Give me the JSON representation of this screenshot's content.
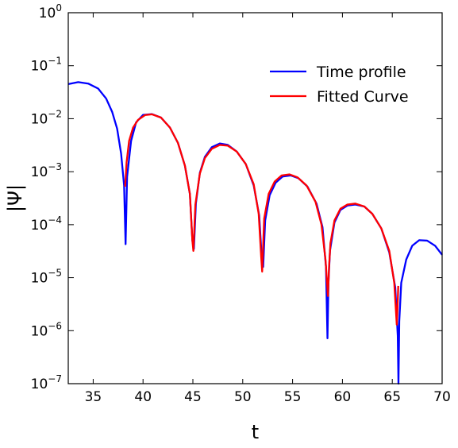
{
  "chart_data": {
    "type": "line",
    "title": "",
    "xlabel": "t",
    "ylabel": "|Ψ|",
    "xlim": [
      32.5,
      70
    ],
    "ylim": [
      1e-07,
      1
    ],
    "yscale": "log",
    "grid": false,
    "legend_position": "top-right",
    "x_ticks": [
      {
        "value": 35,
        "label": "35"
      },
      {
        "value": 40,
        "label": "40"
      },
      {
        "value": 45,
        "label": "45"
      },
      {
        "value": 50,
        "label": "50"
      },
      {
        "value": 55,
        "label": "55"
      },
      {
        "value": 60,
        "label": "60"
      },
      {
        "value": 65,
        "label": "65"
      },
      {
        "value": 70,
        "label": "70"
      }
    ],
    "y_ticks": [
      {
        "exp": 0,
        "base": "10",
        "sup": "0"
      },
      {
        "exp": -1,
        "base": "10",
        "sup": "−1"
      },
      {
        "exp": -2,
        "base": "10",
        "sup": "−2"
      },
      {
        "exp": -3,
        "base": "10",
        "sup": "−3"
      },
      {
        "exp": -4,
        "base": "10",
        "sup": "−4"
      },
      {
        "exp": -5,
        "base": "10",
        "sup": "−5"
      },
      {
        "exp": -6,
        "base": "10",
        "sup": "−6"
      },
      {
        "exp": -7,
        "base": "10",
        "sup": "−7"
      }
    ],
    "series": [
      {
        "name": "Time profile",
        "color": "#0000ff",
        "x": [
          32.5,
          33.5,
          34.5,
          35.5,
          36.3,
          36.9,
          37.4,
          37.8,
          38.1,
          38.25,
          38.4,
          38.8,
          39.3,
          40.0,
          40.9,
          41.8,
          42.7,
          43.5,
          44.2,
          44.7,
          44.95,
          45.1,
          45.3,
          45.7,
          46.2,
          46.9,
          47.7,
          48.5,
          49.4,
          50.3,
          51.1,
          51.65,
          51.9,
          52.05,
          52.25,
          52.7,
          53.3,
          54.0,
          54.8,
          55.6,
          56.5,
          57.4,
          58.0,
          58.35,
          58.5,
          58.6,
          58.75,
          59.2,
          59.8,
          60.5,
          61.3,
          62.2,
          63.0,
          63.9,
          64.7,
          65.3,
          65.55,
          65.62,
          65.7,
          65.9,
          66.4,
          67.0,
          67.7,
          68.5,
          69.3,
          70.0
        ],
        "y": [
          0.045,
          0.049,
          0.046,
          0.037,
          0.024,
          0.0135,
          0.0065,
          0.0022,
          0.00055,
          4.3e-05,
          0.0008,
          0.0038,
          0.0085,
          0.0118,
          0.0122,
          0.0105,
          0.0068,
          0.0035,
          0.0013,
          0.00038,
          5e-05,
          3.5e-05,
          0.00025,
          0.00095,
          0.0019,
          0.0029,
          0.0034,
          0.0032,
          0.0024,
          0.0014,
          0.00055,
          0.00015,
          2.5e-05,
          1.6e-05,
          0.00012,
          0.00036,
          0.00062,
          0.00081,
          0.00085,
          0.00075,
          0.00052,
          0.00025,
          9e-05,
          1.6e-05,
          7.2e-07,
          8e-06,
          3.2e-05,
          0.00011,
          0.00019,
          0.00023,
          0.00024,
          0.00022,
          0.00016,
          8.5e-05,
          3e-05,
          6.5e-06,
          8e-07,
          1e-07,
          1.5e-06,
          8e-06,
          2.2e-05,
          4e-05,
          5.1e-05,
          5e-05,
          4e-05,
          2.7e-05
        ]
      },
      {
        "name": "Fitted Curve",
        "color": "#ff0000",
        "x": [
          38.2,
          38.35,
          38.6,
          39.0,
          39.5,
          40.2,
          40.9,
          41.8,
          42.7,
          43.5,
          44.2,
          44.7,
          44.95,
          45.05,
          45.25,
          45.7,
          46.2,
          46.9,
          47.7,
          48.5,
          49.4,
          50.3,
          51.1,
          51.6,
          51.85,
          51.95,
          52.15,
          52.6,
          53.2,
          53.9,
          54.7,
          55.5,
          56.4,
          57.3,
          57.9,
          58.3,
          58.55,
          58.65,
          58.8,
          59.2,
          59.8,
          60.5,
          61.3,
          62.2,
          63.0,
          63.9,
          64.7,
          65.2,
          65.45,
          65.5,
          65.6
        ],
        "y": [
          0.00052,
          0.0015,
          0.0038,
          0.0068,
          0.0095,
          0.0117,
          0.0121,
          0.0105,
          0.0068,
          0.0035,
          0.0013,
          0.00038,
          5e-05,
          3.2e-05,
          0.00024,
          0.00092,
          0.0018,
          0.0027,
          0.0032,
          0.0031,
          0.0024,
          0.0014,
          0.00058,
          0.00016,
          2.5e-05,
          1.3e-05,
          0.00013,
          0.00038,
          0.00065,
          0.00085,
          0.00089,
          0.00078,
          0.00055,
          0.00027,
          0.0001,
          2.2e-05,
          4.5e-06,
          1.5e-05,
          4.5e-05,
          0.00012,
          0.0002,
          0.00024,
          0.00025,
          0.00022,
          0.00016,
          8.5e-05,
          3.2e-05,
          8e-06,
          1.3e-06,
          2e-06,
          7e-06
        ]
      }
    ]
  }
}
